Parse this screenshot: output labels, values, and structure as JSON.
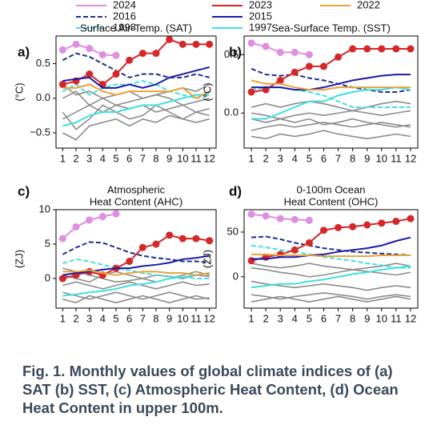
{
  "chart_data": [
    {
      "type": "line",
      "panel": "a)",
      "title": [
        "Surface Air-Temp. (SAT)"
      ],
      "ylabel": "(°C)",
      "categories": [
        "1",
        "2",
        "3",
        "4",
        "5",
        "6",
        "7",
        "8",
        "9",
        "10",
        "11",
        "12"
      ],
      "ylim": [
        -0.72,
        0.9
      ],
      "yticks": [
        {
          "value": -0.5,
          "label": "−0.5"
        },
        {
          "value": 0,
          "label": "0.0"
        },
        0.5
      ],
      "series": [
        {
          "color": "#8c8c8c",
          "values": [
            -0.3,
            -0.2,
            -0.1,
            0.0,
            -0.1,
            -0.05,
            0.0,
            0.05,
            0.0,
            -0.1,
            -0.05,
            0.0
          ]
        },
        {
          "color": "#8c8c8c",
          "values": [
            0.0,
            0.1,
            -0.1,
            -0.2,
            -0.1,
            -0.15,
            -0.1,
            -0.2,
            -0.15,
            -0.1,
            -0.2,
            -0.15
          ]
        },
        {
          "color": "#8c8c8c",
          "values": [
            -0.2,
            -0.45,
            -0.3,
            -0.1,
            -0.2,
            -0.3,
            -0.25,
            -0.1,
            -0.2,
            -0.3,
            -0.2,
            -0.25
          ]
        },
        {
          "color": "#8c8c8c",
          "values": [
            0.2,
            0.05,
            0.1,
            0.0,
            0.05,
            0.1,
            0.0,
            0.05,
            0.1,
            0.15,
            0.1,
            0.2
          ]
        },
        {
          "color": "#8c8c8c",
          "values": [
            -0.5,
            -0.6,
            -0.4,
            -0.35,
            -0.3,
            -0.4,
            -0.3,
            -0.35,
            -0.25,
            -0.3,
            -0.35,
            -0.3
          ]
        },
        {
          "name": "2024",
          "color": "#e08ee0",
          "markers": true,
          "values": [
            0.7,
            0.78,
            0.72,
            0.63,
            0.62,
            null,
            null,
            null,
            null,
            null,
            null,
            null
          ]
        },
        {
          "name": "2016",
          "color": "#1f2f8f",
          "dash": true,
          "values": [
            0.55,
            0.65,
            0.6,
            0.5,
            0.4,
            0.3,
            0.35,
            0.35,
            0.3,
            0.3,
            0.35,
            0.3
          ]
        },
        {
          "name": "1998",
          "color": "#40e0e0",
          "dash": true,
          "values": [
            0.1,
            0.2,
            0.05,
            0.15,
            0.2,
            0.2,
            0.25,
            0.2,
            0.1,
            0.05,
            0.0,
            0.05
          ]
        },
        {
          "name": "2023",
          "color": "#d62728",
          "markers": true,
          "values": [
            0.2,
            0.25,
            0.35,
            0.2,
            0.35,
            0.55,
            0.65,
            0.65,
            0.85,
            0.78,
            0.78,
            0.78
          ]
        },
        {
          "name": "2015",
          "color": "#1a1aaa",
          "values": [
            0.25,
            0.28,
            0.3,
            0.15,
            0.15,
            0.2,
            0.15,
            0.2,
            0.3,
            0.35,
            0.4,
            0.45
          ]
        },
        {
          "name": "1997",
          "color": "#40e0e0",
          "values": [
            -0.4,
            -0.35,
            -0.25,
            -0.2,
            -0.2,
            -0.15,
            -0.1,
            -0.1,
            -0.05,
            0.0,
            0.05,
            0.05
          ]
        },
        {
          "name": "2022",
          "color": "#e8a33a",
          "values": [
            0.15,
            0.15,
            0.2,
            0.1,
            0.05,
            0.1,
            0.1,
            0.1,
            0.1,
            0.15,
            0.0,
            0.1
          ]
        }
      ]
    },
    {
      "type": "line",
      "panel": "b)",
      "title": [
        "Sea-Surface Temp. (SST)"
      ],
      "ylabel": "(°C)",
      "categories": [
        "1",
        "2",
        "3",
        "4",
        "5",
        "6",
        "7",
        "8",
        "9",
        "10",
        "11",
        "12"
      ],
      "ylim": [
        -0.3,
        0.66
      ],
      "yticks": [
        {
          "value": 0,
          "label": "0.0"
        },
        0.5
      ],
      "series": [
        {
          "color": "#8c8c8c",
          "values": [
            -0.05,
            -0.08,
            -0.05,
            -0.02,
            0.0,
            -0.02,
            0.0,
            0.02,
            0.0,
            -0.02,
            0.0,
            0.02
          ]
        },
        {
          "color": "#8c8c8c",
          "values": [
            -0.15,
            -0.12,
            -0.1,
            -0.12,
            -0.1,
            -0.08,
            -0.1,
            -0.12,
            -0.1,
            -0.08,
            -0.1,
            -0.12
          ]
        },
        {
          "color": "#8c8c8c",
          "values": [
            0.05,
            0.08,
            0.05,
            0.08,
            0.1,
            0.08,
            0.05,
            0.02,
            0.05,
            0.08,
            0.1,
            0.08
          ]
        },
        {
          "color": "#8c8c8c",
          "values": [
            -0.2,
            -0.22,
            -0.18,
            -0.2,
            -0.18,
            -0.15,
            -0.18,
            -0.2,
            -0.22,
            -0.2,
            -0.18,
            -0.2
          ]
        },
        {
          "color": "#8c8c8c",
          "values": [
            0.0,
            -0.02,
            -0.05,
            -0.08,
            -0.05,
            -0.1,
            -0.08,
            -0.05,
            -0.08,
            -0.1,
            -0.12,
            -0.1
          ]
        },
        {
          "color": "#e08ee0",
          "markers": true,
          "values": [
            0.6,
            0.57,
            0.52,
            0.52,
            0.5,
            null,
            null,
            null,
            null,
            null,
            null,
            null
          ]
        },
        {
          "color": "#1f2f8f",
          "dash": true,
          "values": [
            0.38,
            0.33,
            0.32,
            0.33,
            0.3,
            0.28,
            0.25,
            0.22,
            0.2,
            0.18,
            0.18,
            0.2
          ]
        },
        {
          "color": "#40e0e0",
          "dash": true,
          "values": [
            0.2,
            0.22,
            0.22,
            0.2,
            0.18,
            0.15,
            0.1,
            0.05,
            0.05,
            0.05,
            0.05,
            0.05
          ]
        },
        {
          "color": "#d62728",
          "markers": true,
          "values": [
            0.18,
            0.2,
            0.28,
            0.35,
            0.4,
            0.4,
            0.48,
            0.55,
            0.55,
            0.55,
            0.55,
            0.55
          ]
        },
        {
          "color": "#1a1aaa",
          "values": [
            0.22,
            0.22,
            0.22,
            0.2,
            0.2,
            0.22,
            0.25,
            0.28,
            0.3,
            0.32,
            0.33,
            0.33
          ]
        },
        {
          "color": "#40e0e0",
          "values": [
            -0.05,
            -0.05,
            0.0,
            0.05,
            0.1,
            0.1,
            0.15,
            0.18,
            0.2,
            0.2,
            0.22,
            0.2
          ]
        },
        {
          "color": "#e8a33a",
          "values": [
            0.28,
            0.25,
            0.25,
            0.22,
            0.2,
            0.2,
            0.22,
            0.22,
            0.22,
            0.22,
            0.22,
            0.22
          ]
        }
      ]
    },
    {
      "type": "line",
      "panel": "c)",
      "title": [
        "Atmospheric",
        "Heat Content (AHC)"
      ],
      "ylabel": "(ZJ)",
      "categories": [
        "1",
        "2",
        "3",
        "4",
        "5",
        "6",
        "7",
        "8",
        "9",
        "10",
        "11",
        "12"
      ],
      "ylim": [
        -4.3,
        10
      ],
      "yticks": [
        0,
        5,
        10
      ],
      "series": [
        {
          "color": "#8c8c8c",
          "values": [
            1.5,
            1.0,
            0.5,
            0.0,
            -0.5,
            -0.3,
            0.0,
            0.5,
            0.3,
            0.0,
            0.5,
            0.3
          ]
        },
        {
          "color": "#8c8c8c",
          "values": [
            -1.0,
            -0.5,
            -1.0,
            -1.5,
            -1.0,
            -0.5,
            -1.0,
            -1.5,
            -1.0,
            -0.5,
            -1.0,
            -0.8
          ]
        },
        {
          "color": "#8c8c8c",
          "values": [
            -2.0,
            -2.5,
            -3.0,
            -2.5,
            -2.0,
            -2.5,
            -3.0,
            -2.5,
            -2.0,
            -2.5,
            -3.0,
            -2.8
          ]
        },
        {
          "color": "#8c8c8c",
          "values": [
            0.5,
            0.0,
            -0.5,
            0.5,
            1.0,
            0.5,
            0.0,
            -0.5,
            0.0,
            0.5,
            1.0,
            0.5
          ]
        },
        {
          "color": "#8c8c8c",
          "values": [
            -3.0,
            -3.5,
            -2.5,
            -3.0,
            -3.5,
            -3.0,
            -2.5,
            -3.0,
            -3.5,
            -3.0,
            -2.5,
            -3.0
          ]
        },
        {
          "color": "#e08ee0",
          "markers": true,
          "values": [
            5.8,
            7.5,
            8.5,
            9.0,
            9.4,
            null,
            null,
            null,
            null,
            null,
            null,
            null
          ]
        },
        {
          "color": "#1f2f8f",
          "dash": true,
          "values": [
            3.5,
            4.5,
            5.3,
            5.2,
            4.5,
            3.8,
            3.3,
            3.0,
            2.8,
            2.5,
            2.5,
            2.3
          ]
        },
        {
          "color": "#40e0e0",
          "dash": true,
          "values": [
            2.2,
            2.8,
            2.5,
            2.0,
            1.5,
            1.2,
            0.8,
            0.5,
            0.3,
            0.2,
            0.0,
            0.0
          ]
        },
        {
          "color": "#d62728",
          "markers": true,
          "values": [
            0.0,
            0.5,
            1.0,
            0.5,
            1.5,
            2.5,
            4.5,
            5.0,
            6.3,
            5.8,
            5.8,
            5.5
          ]
        },
        {
          "color": "#1a1aaa",
          "values": [
            0.5,
            0.8,
            1.0,
            1.3,
            1.5,
            1.5,
            1.8,
            2.0,
            2.3,
            2.8,
            3.0,
            3.3
          ]
        },
        {
          "color": "#40e0e0",
          "values": [
            -2.5,
            -2.3,
            -2.0,
            -1.8,
            -1.5,
            -1.0,
            -0.8,
            -0.5,
            0.0,
            0.2,
            0.5,
            0.8
          ]
        },
        {
          "color": "#e8a33a",
          "values": [
            1.0,
            1.0,
            1.2,
            0.8,
            0.5,
            0.8,
            1.0,
            1.0,
            0.8,
            0.8,
            0.5,
            0.8
          ]
        }
      ]
    },
    {
      "type": "line",
      "panel": "d)",
      "title": [
        "0-100m Ocean",
        "Heat Content (OHC)"
      ],
      "ylabel": "(ZJ)",
      "categories": [
        "1",
        "2",
        "3",
        "4",
        "5",
        "6",
        "7",
        "8",
        "9",
        "10",
        "11",
        "12"
      ],
      "ylim": [
        -35,
        75
      ],
      "yticks": [
        0,
        50
      ],
      "series": [
        {
          "color": "#8c8c8c",
          "values": [
            10,
            8,
            5,
            3,
            0,
            2,
            5,
            8,
            6,
            4,
            2,
            5
          ]
        },
        {
          "color": "#8c8c8c",
          "values": [
            -5,
            -8,
            -10,
            -12,
            -10,
            -8,
            -10,
            -12,
            -15,
            -12,
            -10,
            -12
          ]
        },
        {
          "color": "#8c8c8c",
          "values": [
            -20,
            -22,
            -25,
            -22,
            -20,
            -18,
            -20,
            -22,
            -25,
            -22,
            -20,
            -22
          ]
        },
        {
          "color": "#8c8c8c",
          "values": [
            15,
            12,
            10,
            12,
            15,
            12,
            10,
            8,
            10,
            12,
            15,
            12
          ]
        },
        {
          "color": "#8c8c8c",
          "values": [
            -28,
            -25,
            -22,
            -25,
            -28,
            -25,
            -22,
            -25,
            -28,
            -25,
            -22,
            -25
          ]
        },
        {
          "color": "#e08ee0",
          "markers": true,
          "values": [
            70,
            68,
            65,
            64,
            63,
            null,
            null,
            null,
            null,
            null,
            null,
            null
          ]
        },
        {
          "color": "#1f2f8f",
          "dash": true,
          "values": [
            44,
            45,
            42,
            38,
            35,
            32,
            30,
            28,
            27,
            26,
            25,
            24
          ]
        },
        {
          "color": "#40e0e0",
          "dash": true,
          "values": [
            35,
            33,
            30,
            28,
            25,
            22,
            20,
            18,
            15,
            13,
            10,
            10
          ]
        },
        {
          "color": "#d62728",
          "markers": true,
          "values": [
            18,
            22,
            25,
            30,
            38,
            52,
            55,
            56,
            58,
            60,
            62,
            65
          ]
        },
        {
          "color": "#1a1aaa",
          "values": [
            20,
            20,
            22,
            22,
            24,
            25,
            28,
            30,
            32,
            35,
            40,
            44
          ]
        },
        {
          "color": "#40e0e0",
          "values": [
            -12,
            -10,
            -8,
            -8,
            -5,
            -3,
            0,
            3,
            5,
            8,
            10,
            12
          ]
        },
        {
          "color": "#e8a33a",
          "values": [
            25,
            25,
            24,
            24,
            24,
            23,
            23,
            23,
            23,
            24,
            24,
            24
          ]
        }
      ]
    }
  ],
  "caption": "Fig. 1. Monthly values of global climate indices of (a) SAT (b) SST, (c) Atmospheric Heat Content, (d) Ocean Heat Content in upper 100m."
}
